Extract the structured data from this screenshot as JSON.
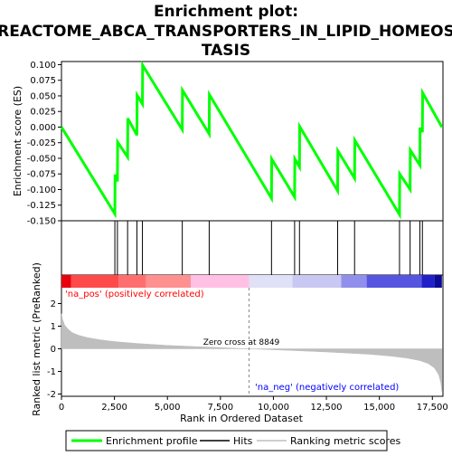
{
  "title_lines": [
    "Enrichment plot:",
    "REACTOME_ABCA_TRANSPORTERS_IN_LIPID_HOMEOS",
    "TASIS"
  ],
  "colors": {
    "es_line": "#00ff00",
    "hits": "#000000",
    "metric_fill": "#bebebe",
    "pos_label": "#ff0000",
    "neg_label": "#0000ff",
    "zero_line": "#888888"
  },
  "chart_data": [
    {
      "type": "line",
      "name": "enrichment-profile",
      "ylabel": "Enrichment score (ES)",
      "ylim": [
        -0.15,
        0.105
      ],
      "xlim": [
        0,
        18000
      ],
      "yticks": [
        "0.100",
        "0.075",
        "0.050",
        "0.025",
        "0.000",
        "-0.025",
        "-0.050",
        "-0.075",
        "-0.100",
        "-0.125",
        "-0.150"
      ],
      "ytick_values": [
        0.1,
        0.075,
        0.05,
        0.025,
        0.0,
        -0.025,
        -0.05,
        -0.075,
        -0.1,
        -0.125,
        -0.15
      ],
      "grid": false,
      "x": [
        0,
        2520,
        2530,
        2640,
        2650,
        3120,
        3130,
        3560,
        3570,
        3820,
        3830,
        5700,
        5710,
        6970,
        6980,
        9910,
        9920,
        11000,
        11010,
        11230,
        11240,
        13030,
        13040,
        13830,
        13840,
        15950,
        15960,
        16450,
        16460,
        16910,
        16920,
        17030,
        17040,
        17950
      ],
      "y": [
        0.0,
        -0.139,
        -0.076,
        -0.087,
        -0.024,
        -0.048,
        0.014,
        -0.013,
        0.051,
        0.037,
        0.099,
        -0.004,
        0.059,
        -0.011,
        0.052,
        -0.114,
        -0.051,
        -0.112,
        -0.051,
        -0.064,
        0.001,
        -0.102,
        -0.038,
        -0.082,
        -0.021,
        -0.14,
        -0.075,
        -0.1,
        -0.037,
        -0.061,
        -0.001,
        -0.008,
        0.055,
        0.0
      ]
    },
    {
      "type": "scatter",
      "name": "hits",
      "x": [
        2520,
        2640,
        3120,
        3560,
        3820,
        5700,
        6970,
        9910,
        11000,
        11230,
        13030,
        13830,
        15950,
        16450,
        16910,
        17030
      ]
    },
    {
      "type": "heatmap",
      "name": "rank-color-bar",
      "segments": [
        {
          "from": 0,
          "to": 450,
          "color": "#e8000e"
        },
        {
          "from": 450,
          "to": 2700,
          "color": "#ff4a4a"
        },
        {
          "from": 2700,
          "to": 4000,
          "color": "#ff6e6e"
        },
        {
          "from": 4000,
          "to": 6100,
          "color": "#ff9090"
        },
        {
          "from": 6100,
          "to": 8849,
          "color": "#ffc0e4"
        },
        {
          "from": 8849,
          "to": 10900,
          "color": "#e0e0f6"
        },
        {
          "from": 10900,
          "to": 13200,
          "color": "#c8c8f2"
        },
        {
          "from": 13200,
          "to": 14400,
          "color": "#9090ec"
        },
        {
          "from": 14400,
          "to": 17000,
          "color": "#5555e0"
        },
        {
          "from": 17000,
          "to": 17600,
          "color": "#2020c8"
        },
        {
          "from": 17600,
          "to": 17950,
          "color": "#0a0a96"
        }
      ]
    },
    {
      "type": "area",
      "name": "ranked-list-metric",
      "ylabel": "Ranked list metric (PreRanked)",
      "xlabel": "Rank in Ordered Dataset",
      "ylim": [
        -2.1,
        2.7
      ],
      "xlim": [
        0,
        18000
      ],
      "yticks": [
        "2",
        "1",
        "0",
        "-1",
        "-2"
      ],
      "ytick_values": [
        2,
        1,
        0,
        -1,
        -2
      ],
      "xticks": [
        "0",
        "2,500",
        "5,000",
        "7,500",
        "10,000",
        "12,500",
        "15,000",
        "17,500"
      ],
      "xtick_values": [
        0,
        2500,
        5000,
        7500,
        10000,
        12500,
        15000,
        17500
      ],
      "x": [
        0,
        50,
        150,
        300,
        500,
        800,
        1200,
        1800,
        2500,
        3500,
        5000,
        7000,
        8849,
        10500,
        12500,
        14500,
        15500,
        16300,
        16900,
        17300,
        17600,
        17800,
        17900,
        17950
      ],
      "y": [
        1.55,
        1.3,
        1.05,
        0.88,
        0.72,
        0.6,
        0.5,
        0.4,
        0.32,
        0.24,
        0.15,
        0.07,
        0.0,
        -0.06,
        -0.14,
        -0.24,
        -0.32,
        -0.41,
        -0.52,
        -0.65,
        -0.85,
        -1.15,
        -1.5,
        -1.9
      ]
    }
  ],
  "labels": {
    "pos": "'na_pos' (positively correlated)",
    "neg": "'na_neg' (negatively correlated)",
    "zero_cross": "Zero cross at 8849"
  },
  "zero_cross_rank": 8849,
  "legend": {
    "items": [
      "Enrichment profile",
      "Hits",
      "Ranking metric scores"
    ]
  }
}
